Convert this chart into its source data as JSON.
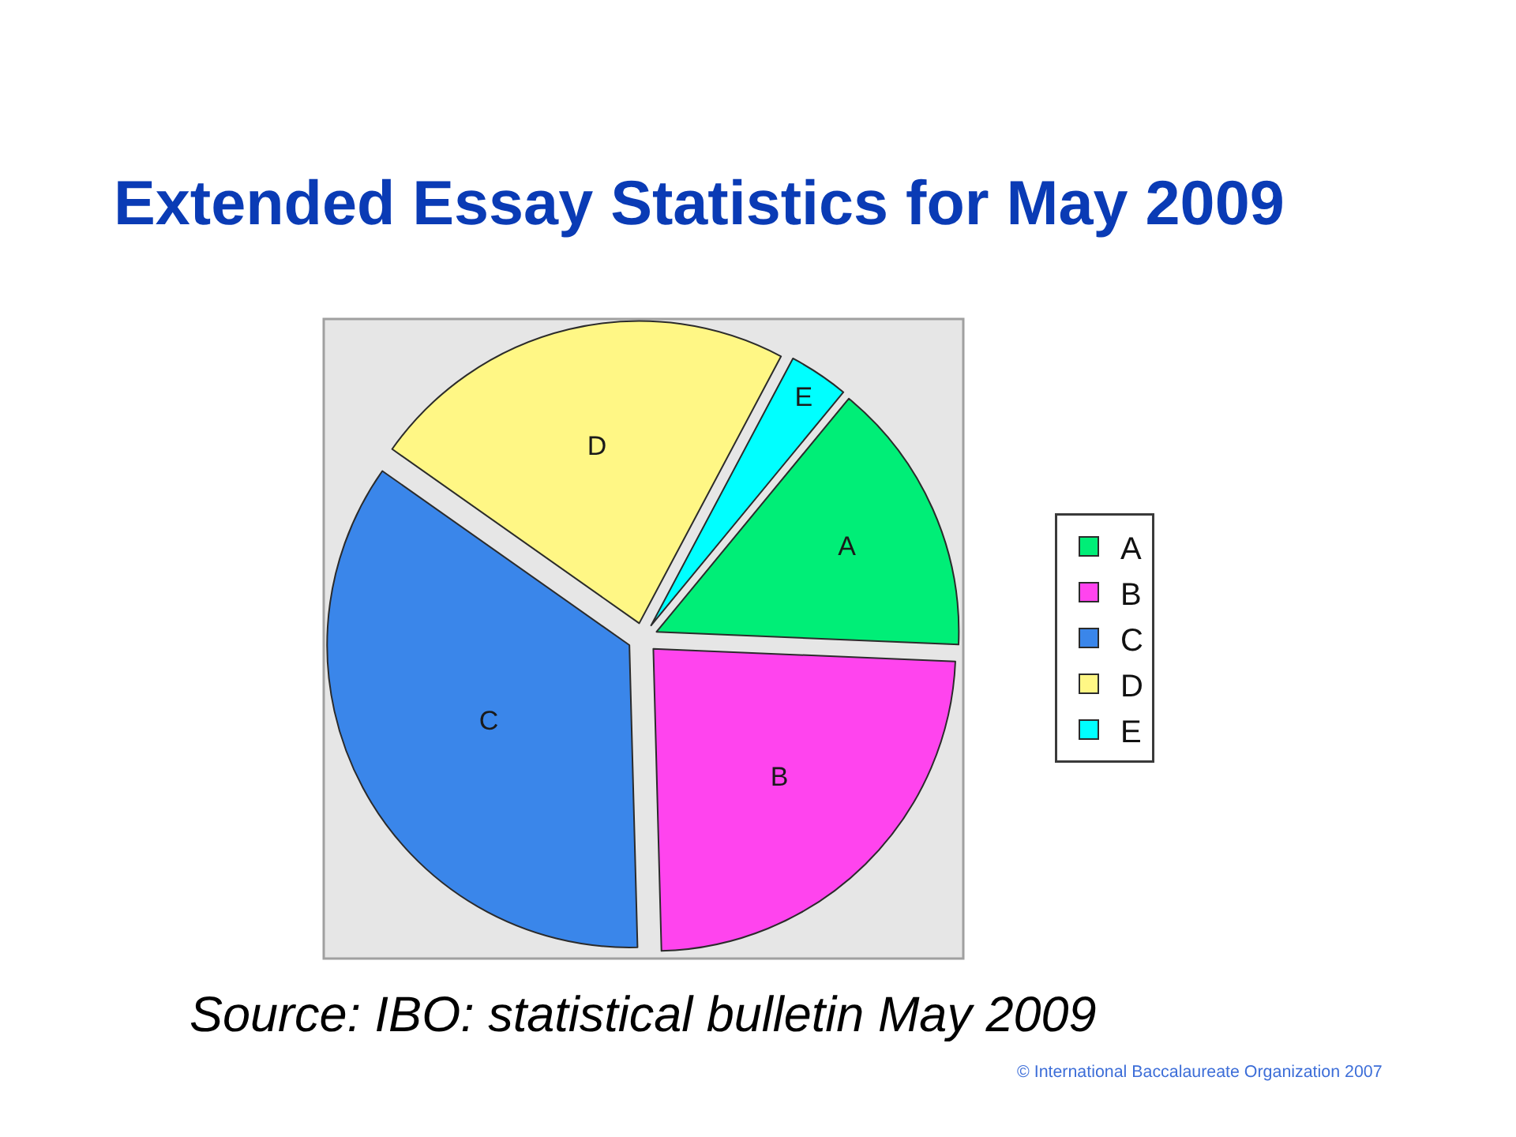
{
  "chart_data": {
    "type": "pie",
    "title": "Extended Essay Statistics for May 2009",
    "categories": [
      "A",
      "B",
      "C",
      "D",
      "E"
    ],
    "values": [
      14.7,
      23.9,
      35.2,
      23,
      3.2
    ],
    "colors": [
      "#00ee77",
      "#ff44ee",
      "#3a86ea",
      "#fff785",
      "#00ffff"
    ],
    "legend": "right",
    "annotations": [
      "Source: IBO: statistical bulletin May 2009",
      "© International Baccalaureate Organization 2007"
    ]
  }
}
